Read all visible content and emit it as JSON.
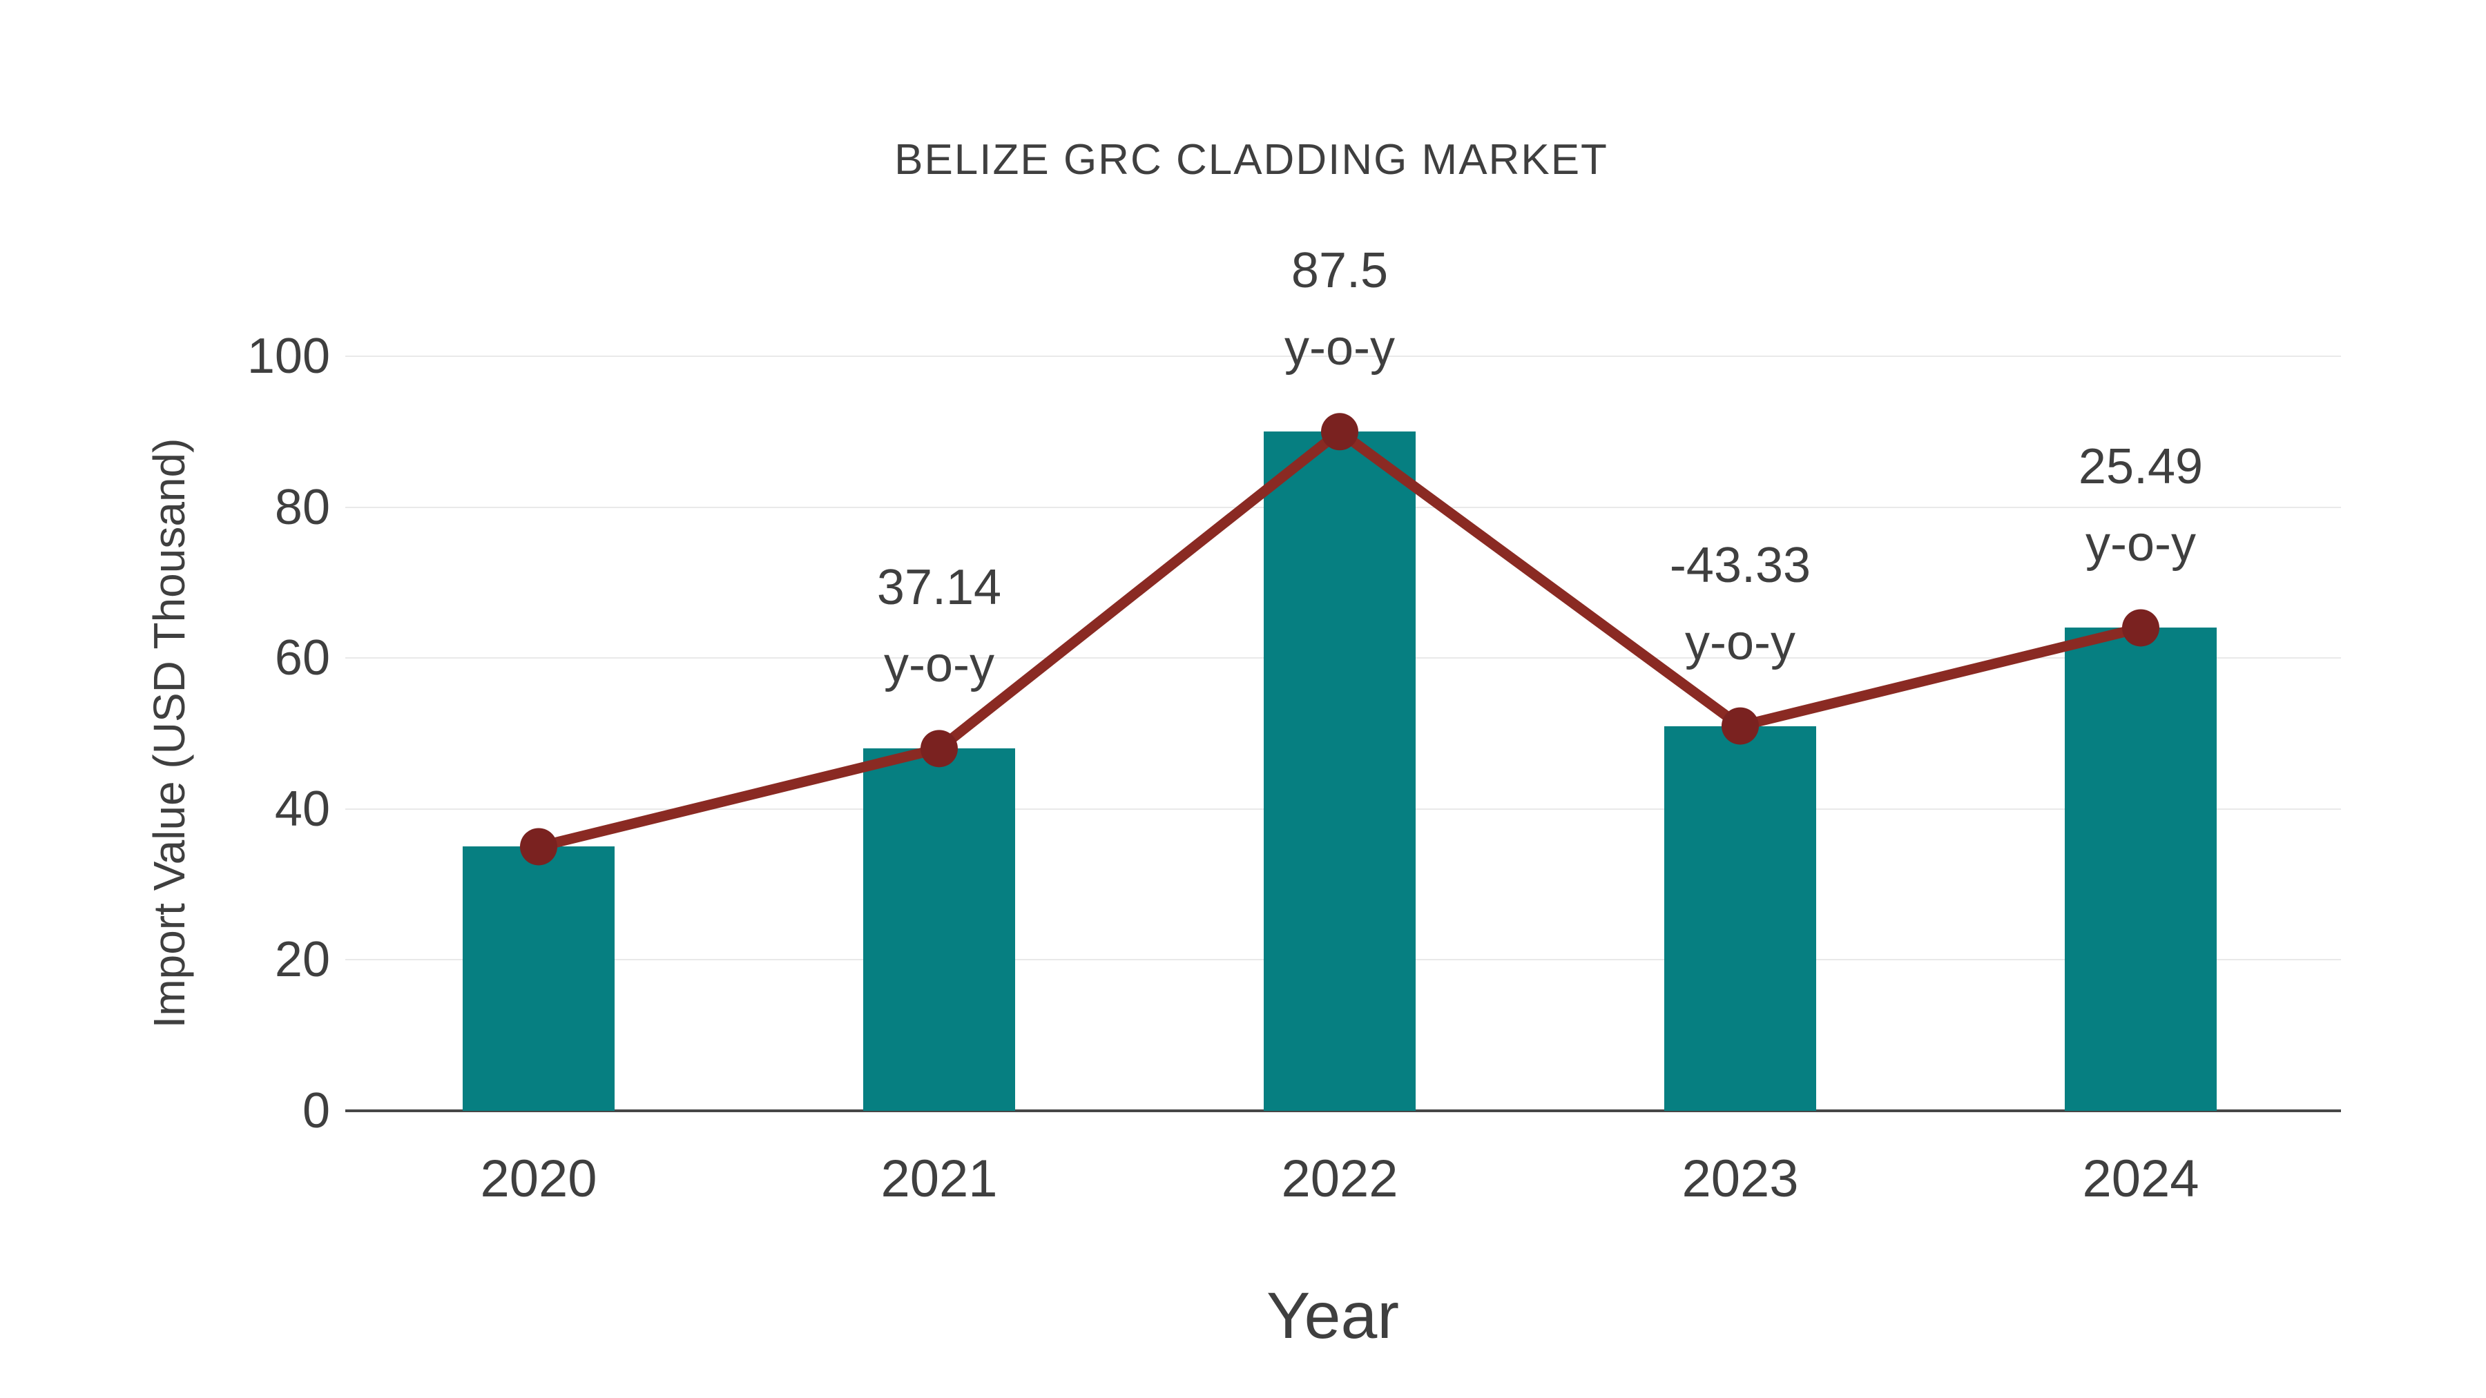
{
  "chart_data": {
    "type": "bar",
    "title": "BELIZE GRC CLADDING MARKET",
    "xlabel": "Year",
    "ylabel": "Import Value (USD Thousand)",
    "categories": [
      "2020",
      "2021",
      "2022",
      "2023",
      "2024"
    ],
    "series": [
      {
        "name": "import-value-bars",
        "type": "bar",
        "values": [
          35,
          48,
          90,
          51,
          64
        ]
      },
      {
        "name": "yoy-change-line",
        "type": "line",
        "values": [
          35,
          48,
          90,
          51,
          64
        ],
        "point_labels": [
          "",
          "37.14",
          "87.5",
          "-43.33",
          "25.49"
        ],
        "point_label_suffix": "y-o-y"
      }
    ],
    "ylim": [
      0,
      100
    ],
    "yticks": [
      0,
      20,
      40,
      60,
      80,
      100
    ],
    "grid": true,
    "legend_position": "none"
  },
  "colors": {
    "bar": "#067f81",
    "line": "#8a2a23",
    "marker": "#7a2220",
    "text": "#3f3f3f",
    "grid": "#e9e9e9",
    "axis": "#474747",
    "background": "#ffffff"
  }
}
